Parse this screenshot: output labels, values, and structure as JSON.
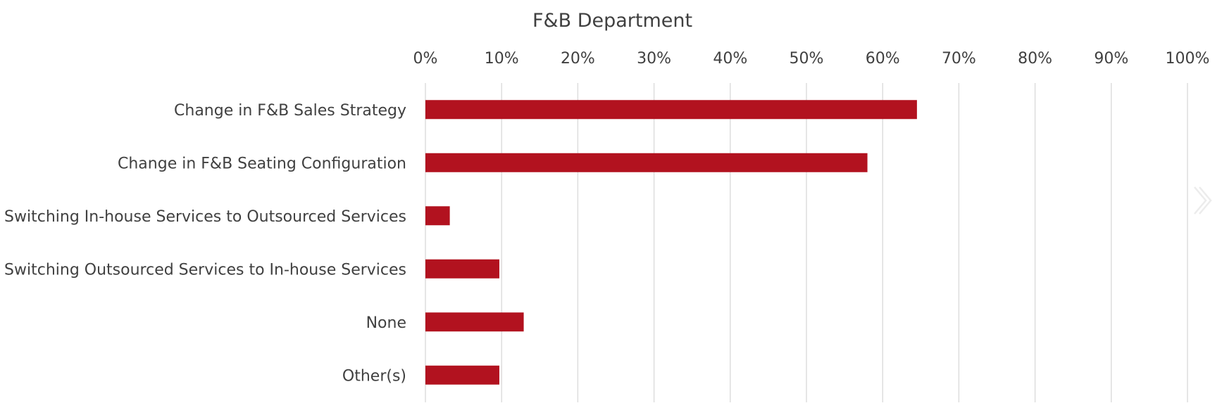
{
  "chart_data": {
    "type": "bar",
    "orientation": "horizontal",
    "title": "F&B Department",
    "categories": [
      "Change in F&B Sales Strategy",
      "Change in F&B Seating Configuration",
      "Switching In-house Services to Outsourced Services",
      "Switching Outsourced Services to In-house Services",
      "None",
      "Other(s)"
    ],
    "values": [
      64.5,
      58.0,
      3.2,
      9.7,
      12.9,
      9.7
    ],
    "value_unit": "%",
    "xlim": [
      0,
      100
    ],
    "x_ticks": [
      "0%",
      "10%",
      "20%",
      "30%",
      "40%",
      "50%",
      "60%",
      "70%",
      "80%",
      "90%",
      "100%"
    ],
    "x_axis_position": "top",
    "grid": "vertical",
    "legend": "none",
    "colors": {
      "bar": "#b2121f",
      "grid": "#d9d9d9",
      "text": "#404040"
    }
  },
  "nav": {
    "next_icon": "chevron-right-double-icon"
  }
}
